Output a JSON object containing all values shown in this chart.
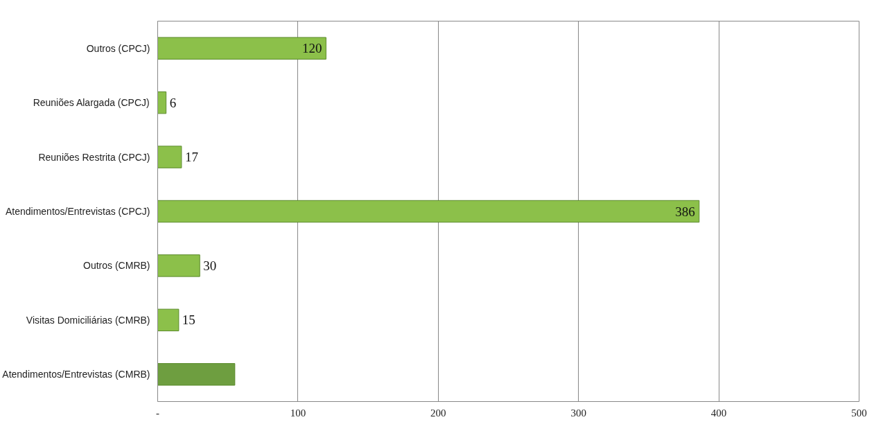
{
  "chart_data": {
    "type": "bar",
    "orientation": "horizontal",
    "categories": [
      "Outros (CPCJ)",
      "Reuniões Alargada (CPCJ)",
      "Reuniões Restrita (CPCJ)",
      "Atendimentos/Entrevistas (CPCJ)",
      "Outros (CMRB)",
      "Visitas Domiciliárias (CMRB)",
      "Atendimentos/Entrevistas (CMRB)"
    ],
    "values": [
      120,
      6,
      17,
      386,
      30,
      15,
      55
    ],
    "value_labels": [
      "120",
      "6",
      "17",
      "386",
      "30",
      "15",
      null
    ],
    "colors": [
      "#8cc04a",
      "#8cc04a",
      "#8cc04a",
      "#8cc04a",
      "#8cc04a",
      "#8cc04a",
      "#6e9e40"
    ],
    "xlim": [
      0,
      500
    ],
    "xticks": [
      {
        "value": 0,
        "label": "-"
      },
      100,
      200,
      300,
      400,
      500
    ],
    "grid": "x"
  }
}
